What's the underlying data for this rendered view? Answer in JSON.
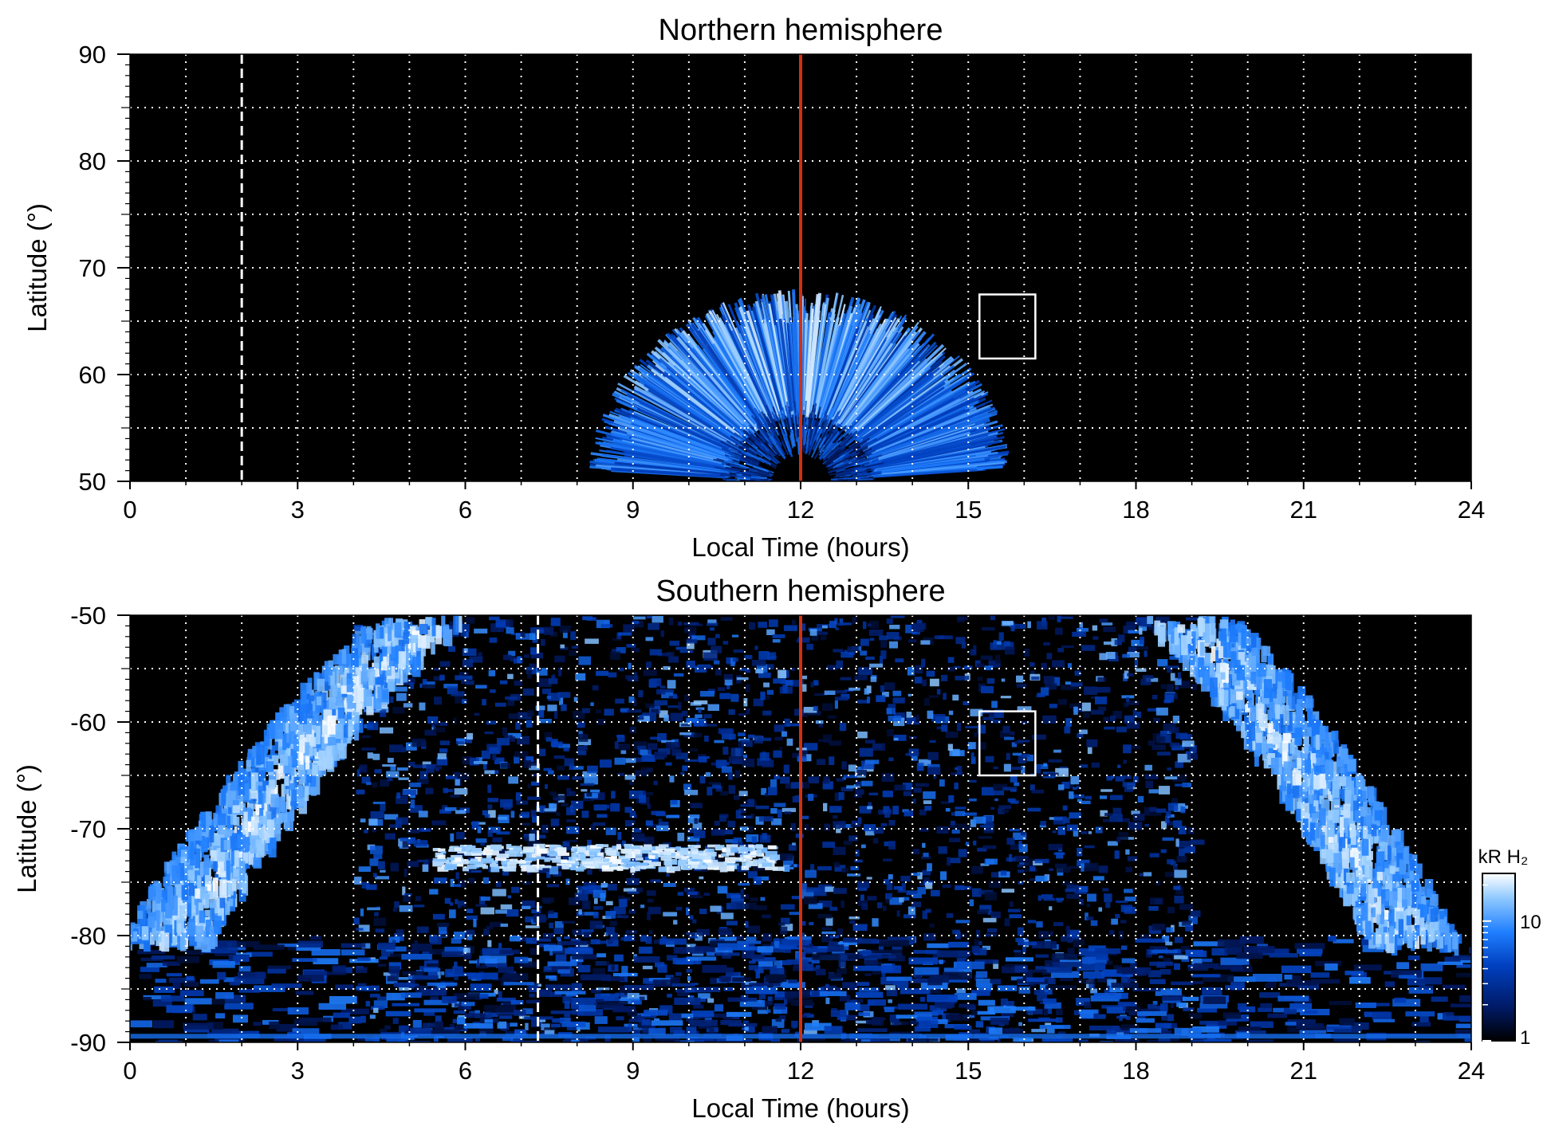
{
  "chart_data": [
    {
      "type": "heatmap",
      "title": "Northern hemisphere",
      "xlabel": "Local Time (hours)",
      "ylabel": "Latitude (°)",
      "xlim": [
        0,
        24
      ],
      "ylim": [
        50,
        90
      ],
      "xticks": [
        "0",
        "3",
        "6",
        "9",
        "12",
        "15",
        "18",
        "21",
        "24"
      ],
      "yticks": [
        "50",
        "60",
        "70",
        "80",
        "90"
      ],
      "grid": true,
      "noon_line_lt": 12,
      "dashed_line_lt": 2,
      "box": {
        "lt": [
          15.2,
          16.2
        ],
        "lat": [
          61.5,
          67.5
        ]
      },
      "emission": {
        "center_lt": 12,
        "oval_edge_lat_at_noon": 68,
        "oval_inner_lat_at_noon": 57,
        "oval_halfwidth_lt_at_50": 3.8,
        "dark_core_lat_at_noon": 56
      }
    },
    {
      "type": "heatmap",
      "title": "Southern hemisphere",
      "xlabel": "Local Time (hours)",
      "ylabel": "Latitude (°)",
      "xlim": [
        0,
        24
      ],
      "ylim": [
        -90,
        -50
      ],
      "xticks": [
        "0",
        "3",
        "6",
        "9",
        "12",
        "15",
        "18",
        "21",
        "24"
      ],
      "yticks": [
        "-50",
        "-60",
        "-70",
        "-80",
        "-90"
      ],
      "grid": true,
      "noon_line_lt": 12,
      "dashed_line_lt": 7.3,
      "box": {
        "lt": [
          15.2,
          16.2
        ],
        "lat": [
          -65,
          -59
        ]
      },
      "emission": {
        "left_oval_lt_at_minus50": 5.5,
        "left_oval_lt_at_minus80": 0.8,
        "right_oval_lt_at_minus50": 18.7,
        "right_oval_lt_at_minus80": 22.8,
        "bright_streak": {
          "lt": [
            5.4,
            11.5
          ],
          "lat": -72.5
        }
      }
    }
  ],
  "colorbar": {
    "label": "kR H₂",
    "ticks": [
      "1",
      "10"
    ],
    "scale": "log",
    "range": [
      1,
      25
    ],
    "colors": [
      "#000000",
      "#001a66",
      "#0040c0",
      "#1f7fff",
      "#8ec8ff",
      "#ffffff"
    ]
  },
  "colors": {
    "noon_line": "#d03010",
    "grid": "#ffffff",
    "background": "#000000"
  }
}
